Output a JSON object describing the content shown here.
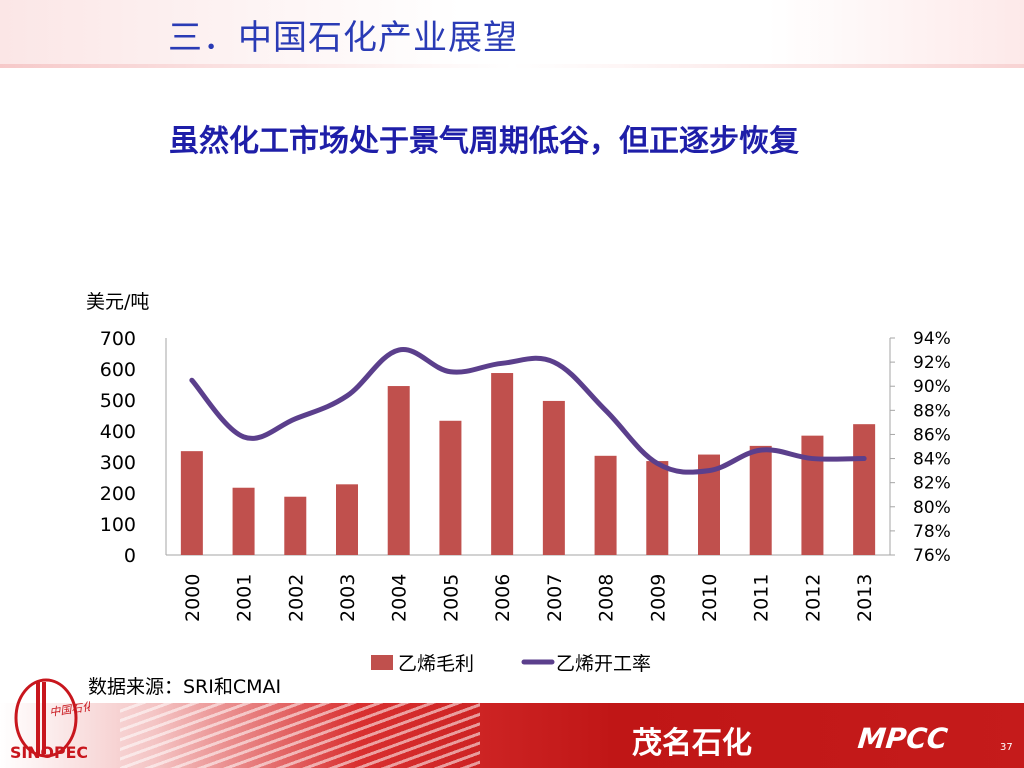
{
  "slide": {
    "section_title": "三．中国石化产业展望",
    "headline": "虽然化工市场处于景气周期低谷，但正逐步恢复",
    "source_note": "数据来源：SRI和CMAI",
    "company_name": "茂名石化",
    "company_abbr": "MPCC",
    "page_number": "37",
    "logo": {
      "cn_text": "中国石化",
      "en_text": "SINOPEC",
      "color": "#c8161d"
    }
  },
  "colors": {
    "title_blue": "#2a3bb5",
    "headline_blue": "#1e1ea8",
    "bar_red": "#c0504d",
    "line_purple": "#5b3f8c",
    "footer_red": "#c51b1b"
  },
  "chart_data": {
    "type": "bar",
    "y_unit_label": "美元/吨",
    "categories": [
      "2000",
      "2001",
      "2002",
      "2003",
      "2004",
      "2005",
      "2006",
      "2007",
      "2008",
      "2009",
      "2010",
      "2011",
      "2012",
      "2013"
    ],
    "series": [
      {
        "name": "乙烯毛利",
        "type": "bar",
        "axis": "left",
        "values": [
          335,
          217,
          188,
          228,
          545,
          433,
          587,
          497,
          320,
          303,
          324,
          352,
          385,
          422
        ]
      },
      {
        "name": "乙烯开工率",
        "type": "line",
        "axis": "right",
        "values": [
          90.5,
          85.8,
          87.3,
          89.2,
          93.0,
          91.2,
          91.9,
          92.0,
          88.0,
          83.6,
          83.0,
          84.7,
          84.0,
          84.0
        ]
      }
    ],
    "y_left": {
      "ylim": [
        0,
        700
      ],
      "ticks": [
        "0",
        "100",
        "200",
        "300",
        "400",
        "500",
        "600",
        "700"
      ]
    },
    "y_right": {
      "ylim": [
        76,
        94
      ],
      "ticks": [
        "76%",
        "78%",
        "80%",
        "82%",
        "84%",
        "86%",
        "88%",
        "90%",
        "92%",
        "94%"
      ]
    },
    "legend_placement": "bottom",
    "grid": false
  }
}
